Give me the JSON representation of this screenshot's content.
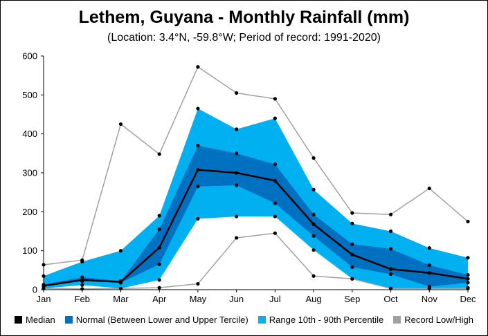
{
  "chart_data": {
    "type": "area",
    "title": "Lethem, Guyana - Monthly Rainfall (mm)",
    "subtitle": "(Location: 3.4°N, -59.8°W; Period of record: 1991-2020)",
    "categories": [
      "Jan",
      "Feb",
      "Mar",
      "Apr",
      "May",
      "Jun",
      "Jul",
      "Aug",
      "Sep",
      "Oct",
      "Nov",
      "Dec"
    ],
    "ylim": [
      0,
      600
    ],
    "yticks": [
      "0",
      "100",
      "200",
      "300",
      "400",
      "500",
      "600"
    ],
    "grid": false,
    "legend_position": "bottom",
    "series": [
      {
        "name": "Median",
        "color": "#000000",
        "values": [
          10,
          25,
          20,
          108,
          308,
          300,
          280,
          168,
          90,
          53,
          43,
          28
        ]
      },
      {
        "name": "Normal (Between Lower and Upper Tercile)",
        "color": "#0070c0",
        "lower": [
          8,
          22,
          18,
          65,
          265,
          268,
          222,
          138,
          58,
          40,
          8,
          18
        ],
        "upper": [
          13,
          32,
          22,
          155,
          370,
          350,
          322,
          193,
          117,
          105,
          63,
          38
        ]
      },
      {
        "name": "Range 10th - 90th Percentile",
        "color": "#00b0f0",
        "lower": [
          3,
          12,
          3,
          25,
          182,
          188,
          188,
          102,
          28,
          3,
          3,
          5
        ],
        "upper": [
          35,
          72,
          100,
          190,
          465,
          412,
          440,
          257,
          170,
          150,
          107,
          82
        ]
      },
      {
        "name": "Record Low/High",
        "color": "#a0a0a0",
        "lower": [
          3,
          2,
          3,
          5,
          15,
          133,
          145,
          35,
          28,
          3,
          3,
          3
        ],
        "upper": [
          64,
          76,
          425,
          348,
          572,
          505,
          490,
          338,
          197,
          193,
          260,
          175
        ]
      }
    ]
  }
}
